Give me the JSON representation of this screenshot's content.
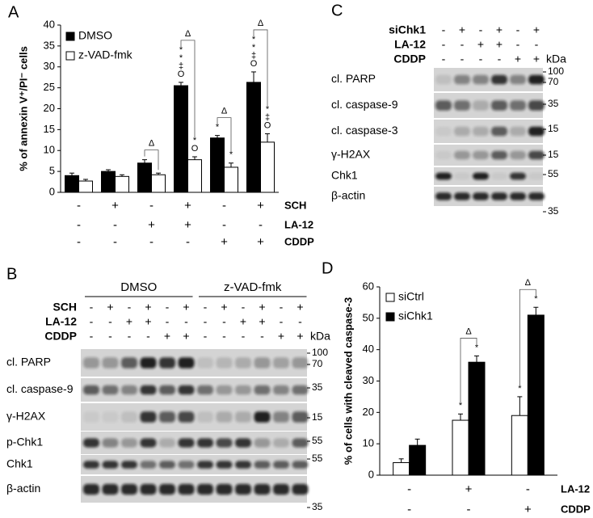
{
  "panels": [
    "A",
    "B",
    "C",
    "D"
  ],
  "chart_data": [
    {
      "type": "bar",
      "ylabel": "% of annexin V⁺/PI⁻ cells",
      "ylim": [
        0,
        40
      ],
      "yticks": [
        0,
        5,
        10,
        15,
        20,
        25,
        30,
        35,
        40
      ],
      "legend": "upper left",
      "series": [
        {
          "name": "DMSO",
          "color": "#000000",
          "values": [
            4,
            5,
            7,
            25.5,
            13,
            26.3
          ],
          "errors": [
            0.6,
            0.4,
            0.8,
            0.8,
            0.6,
            2.5
          ],
          "marks": [
            null,
            null,
            null,
            [
              "*",
              "*",
              "‡",
              "O"
            ],
            [
              "*"
            ],
            [
              "*",
              "*",
              "‡",
              "O"
            ]
          ]
        },
        {
          "name": "z-VAD-fmk",
          "color": "#ffffff",
          "values": [
            2.7,
            3.8,
            4.2,
            7.8,
            6,
            12
          ],
          "errors": [
            0.4,
            0.4,
            0.4,
            0.7,
            1,
            2
          ],
          "marks": [
            null,
            null,
            null,
            [
              "*",
              "O"
            ],
            [
              "*"
            ],
            [
              "*",
              "‡",
              "O"
            ]
          ]
        }
      ],
      "comparisons": [
        null,
        null,
        "Δ",
        "Δ",
        "Δ",
        "Δ"
      ],
      "conditions": [
        {
          "name": "SCH",
          "values": [
            "-",
            "+",
            "-",
            "+",
            "-",
            "+"
          ]
        },
        {
          "name": "LA-12",
          "values": [
            "-",
            "-",
            "+",
            "+",
            "-",
            "-"
          ]
        },
        {
          "name": "CDDP",
          "values": [
            "-",
            "-",
            "-",
            "-",
            "+",
            "+"
          ]
        }
      ]
    },
    {
      "type": "bar",
      "ylabel": "% of cells with cleaved caspase-3",
      "ylim": [
        0,
        60
      ],
      "yticks": [
        0,
        10,
        20,
        30,
        40,
        50,
        60
      ],
      "legend": "upper left",
      "series": [
        {
          "name": "siCtrl",
          "color": "#ffffff",
          "values": [
            4,
            17.5,
            19
          ],
          "errors": [
            1.2,
            2,
            6
          ],
          "marks": [
            null,
            [
              "*"
            ],
            [
              "*"
            ]
          ]
        },
        {
          "name": "siChk1",
          "color": "#000000",
          "values": [
            9.5,
            36,
            51
          ],
          "errors": [
            2,
            2,
            2.5
          ],
          "marks": [
            null,
            [
              "*"
            ],
            [
              "*"
            ]
          ]
        }
      ],
      "comparisons": [
        null,
        "Δ",
        "Δ"
      ],
      "conditions": [
        {
          "name": "LA-12",
          "values": [
            "-",
            "+",
            "-"
          ]
        },
        {
          "name": "CDDP",
          "values": [
            "-",
            "-",
            "+"
          ]
        }
      ]
    }
  ],
  "blots": [
    {
      "groups": [
        "DMSO",
        "z-VAD-fmk"
      ],
      "unit": "kDa",
      "conditions": [
        {
          "name": "SCH",
          "values": [
            "-",
            "+",
            "-",
            "+",
            "-",
            "+",
            "-",
            "+",
            "-",
            "+",
            "-",
            "+"
          ]
        },
        {
          "name": "LA-12",
          "values": [
            "-",
            "-",
            "+",
            "+",
            "-",
            "-",
            "-",
            "-",
            "+",
            "+",
            "-",
            "-"
          ]
        },
        {
          "name": "CDDP",
          "values": [
            "-",
            "-",
            "-",
            "-",
            "+",
            "+",
            "-",
            "-",
            "-",
            "-",
            "+",
            "+"
          ]
        }
      ],
      "rows": [
        {
          "label": "cl. PARP",
          "markers": [
            "100",
            "70"
          ]
        },
        {
          "label": "cl. caspase-9",
          "markers": [
            "35"
          ]
        },
        {
          "label": "γ-H2AX",
          "markers": [
            "15"
          ]
        },
        {
          "label": "p-Chk1",
          "markers": [
            "55"
          ]
        },
        {
          "label": "Chk1",
          "markers": [
            "55"
          ]
        },
        {
          "label": "β-actin",
          "markers": [
            "35"
          ]
        }
      ]
    },
    {
      "unit": "kDa",
      "conditions": [
        {
          "name": "siChk1",
          "values": [
            "-",
            "+",
            "-",
            "+",
            "-",
            "+"
          ]
        },
        {
          "name": "LA-12",
          "values": [
            "-",
            "-",
            "+",
            "+",
            "-",
            "-"
          ]
        },
        {
          "name": "CDDP",
          "values": [
            "-",
            "-",
            "-",
            "-",
            "+",
            "+"
          ]
        }
      ],
      "rows": [
        {
          "label": "cl. PARP",
          "markers": [
            "100",
            "70"
          ]
        },
        {
          "label": "cl. caspase-9",
          "markers": [
            "35"
          ]
        },
        {
          "label": "cl. caspase-3",
          "markers": [
            "15"
          ]
        },
        {
          "label": "γ-H2AX",
          "markers": [
            "15"
          ]
        },
        {
          "label": "Chk1",
          "markers": [
            "55"
          ]
        },
        {
          "label": "β-actin",
          "markers": [
            "35"
          ]
        }
      ]
    }
  ]
}
